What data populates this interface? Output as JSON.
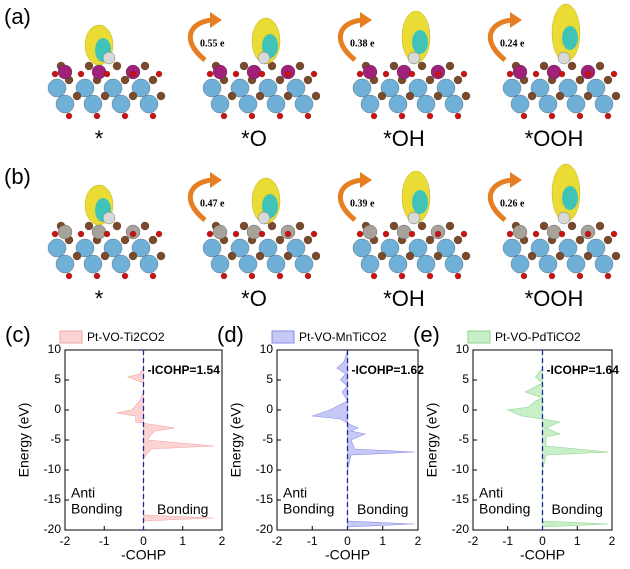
{
  "panels": [
    {
      "label": "(a)",
      "structures": [
        {
          "label": "*"
        },
        {
          "label": "*O",
          "charge": "0.55 e"
        },
        {
          "label": "*OH",
          "charge": "0.38 e"
        },
        {
          "label": "*OOH",
          "charge": "0.24 e"
        }
      ]
    },
    {
      "label": "(b)",
      "structures": [
        {
          "label": "*"
        },
        {
          "label": "*O",
          "charge": "0.47 e"
        },
        {
          "label": "*OH",
          "charge": "0.39 e"
        },
        {
          "label": "*OOH",
          "charge": "0.26 e"
        }
      ]
    }
  ],
  "chart_data": [
    {
      "type": "area",
      "panel": "(c)",
      "xlabel": "-COHP",
      "ylabel": "Energy (eV)",
      "xlim": [
        -2,
        2
      ],
      "xticks": [
        -2,
        -1,
        0,
        1,
        2
      ],
      "ylim": [
        -20,
        10
      ],
      "yticks": [
        -20,
        -15,
        -10,
        -5,
        0,
        5,
        10
      ],
      "icohp": "-ICOHP=1.54",
      "anti": [
        "Anti",
        "Bonding"
      ],
      "bonding": "Bonding",
      "series": [
        {
          "name": "Pt-VO-Ti2CO2",
          "color": "#fcd3d3",
          "stroke": "#f2a4a4",
          "energy": [
            10,
            7,
            6,
            5.5,
            5,
            4.5,
            3,
            1.5,
            0,
            -0.5,
            -1,
            -2,
            -2.5,
            -3,
            -3.5,
            -4,
            -5,
            -6,
            -6.5,
            -8,
            -17.5,
            -18,
            -18.5,
            -20
          ],
          "values": [
            0,
            0,
            -0.1,
            -0.4,
            -0.2,
            0,
            0,
            -0.1,
            -0.3,
            -0.7,
            -0.2,
            -0.2,
            0.3,
            0.8,
            0.3,
            0.2,
            0.1,
            1.8,
            0.2,
            0,
            0,
            1.8,
            0,
            0
          ]
        }
      ]
    },
    {
      "type": "area",
      "panel": "(d)",
      "xlabel": "-COHP",
      "ylabel": "Energy (eV)",
      "xlim": [
        -2,
        2
      ],
      "xticks": [
        -2,
        -1,
        0,
        1,
        2
      ],
      "ylim": [
        -20,
        10
      ],
      "yticks": [
        -20,
        -15,
        -10,
        -5,
        0,
        5,
        10
      ],
      "icohp": "-ICOHP=1.62",
      "anti": [
        "Anti",
        "Bonding"
      ],
      "bonding": "Bonding",
      "series": [
        {
          "name": "Pt-VO-MnTiCO2",
          "color": "#c6c8f6",
          "stroke": "#8a8ce6",
          "energy": [
            10,
            8,
            7,
            6,
            5,
            4,
            3,
            1.5,
            0,
            -1,
            -1.5,
            -2.5,
            -3,
            -3.5,
            -4,
            -5,
            -6.5,
            -7,
            -7.5,
            -10,
            -18.5,
            -19,
            -19.5,
            -20
          ],
          "values": [
            0,
            -0.1,
            -0.3,
            -0.05,
            -0.2,
            0,
            -0.15,
            0,
            -0.5,
            -1.0,
            -0.2,
            0.1,
            0.3,
            0.1,
            0.5,
            0.1,
            0.2,
            1.9,
            0.1,
            0,
            0,
            1.9,
            0,
            0
          ]
        }
      ]
    },
    {
      "type": "area",
      "panel": "(e)",
      "xlabel": "-COHP",
      "ylabel": "Energy (eV)",
      "xlim": [
        -2,
        2
      ],
      "xticks": [
        -2,
        -1,
        0,
        1,
        2
      ],
      "ylim": [
        -20,
        10
      ],
      "yticks": [
        -20,
        -15,
        -10,
        -5,
        0,
        5,
        10
      ],
      "icohp": "-ICOHP=1.64",
      "anti": [
        "Anti",
        "Bonding"
      ],
      "bonding": "Bonding",
      "series": [
        {
          "name": "Pt-VO-PdTiCO2",
          "color": "#c8efc8",
          "stroke": "#8bd48b",
          "energy": [
            10,
            7,
            5.5,
            4.5,
            3,
            2,
            1.5,
            0.5,
            0,
            -1,
            -1.5,
            -2,
            -3,
            -4,
            -4.5,
            -6,
            -7,
            -7.5,
            -10,
            -18.5,
            -19,
            -19.5,
            -20
          ],
          "values": [
            0,
            0,
            -0.2,
            0,
            -0.5,
            0,
            -0.2,
            -0.4,
            -1.0,
            -0.6,
            0,
            0.5,
            0.1,
            0.5,
            0.1,
            0.1,
            1.9,
            0.1,
            0,
            0,
            1.9,
            0,
            0
          ]
        }
      ]
    }
  ]
}
